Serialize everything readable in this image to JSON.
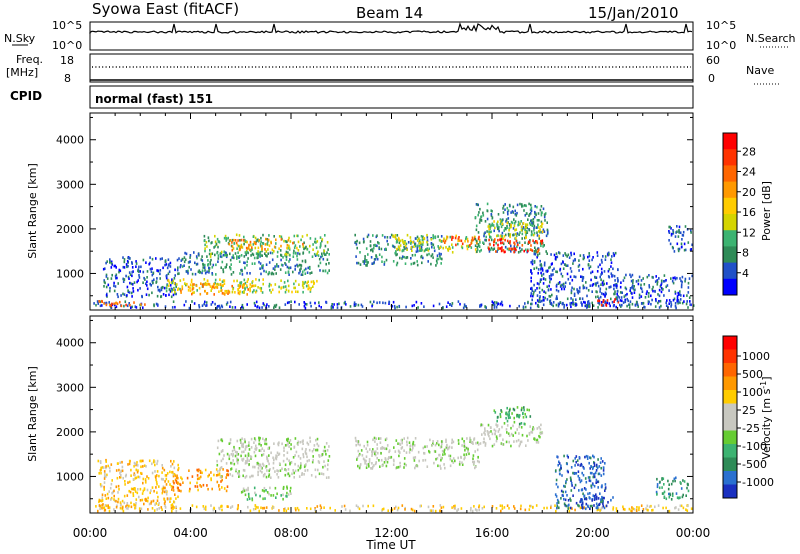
{
  "header": {
    "station": "Syowa East (fitACF)",
    "beam": "Beam 14",
    "date": "15/Jan/2010"
  },
  "strip_panels": {
    "nsky_label": "N.Sky",
    "nsky_ticks": [
      "10^5",
      "10^0"
    ],
    "nsearch_label": "N.Search",
    "nsearch_ticks": [
      "10^5",
      "10^0"
    ],
    "freq_label": "Freq.",
    "freq_unit": "[MHz]",
    "freq_ticks": [
      "18",
      "8"
    ],
    "nave_label": "Nave",
    "nave_ticks": [
      "60",
      "0"
    ],
    "cpid_label": "CPID",
    "cpid_value": "normal (fast) 151"
  },
  "chart_data": [
    {
      "type": "heatmap",
      "name": "power-panel",
      "ylabel": "Slant Range [km]",
      "xlabel": "",
      "xlim": [
        0,
        24
      ],
      "ylim": [
        180,
        4600
      ],
      "yticks": [
        "1000",
        "2000",
        "3000",
        "4000"
      ],
      "xticks": [
        "00:00",
        "04:00",
        "08:00",
        "12:00",
        "16:00",
        "20:00",
        "00:00"
      ],
      "colorbar": {
        "label": "Power [dB]",
        "ticks": [
          "4",
          "8",
          "12",
          "16",
          "20",
          "24",
          "28"
        ],
        "colors": [
          "#0000ff",
          "#2050c8",
          "#2e8b57",
          "#3cb371",
          "#d4d400",
          "#ffcc00",
          "#ff9900",
          "#ff6600",
          "#ff3300",
          "#ff0000"
        ]
      },
      "regions": [
        {
          "t0": 0.0,
          "t1": 24.0,
          "r0": 250,
          "r1": 400,
          "level": 1
        },
        {
          "t0": 0.3,
          "t1": 2.2,
          "r0": 300,
          "r1": 420,
          "level": 7
        },
        {
          "t0": 0.5,
          "t1": 3.5,
          "r0": 500,
          "r1": 1400,
          "level": 1
        },
        {
          "t0": 3.0,
          "t1": 9.0,
          "r0": 600,
          "r1": 900,
          "level": 4
        },
        {
          "t0": 3.5,
          "t1": 6.5,
          "r0": 550,
          "r1": 800,
          "level": 6
        },
        {
          "t0": 3.5,
          "t1": 9.5,
          "r0": 1000,
          "r1": 1500,
          "level": 2
        },
        {
          "t0": 4.5,
          "t1": 9.5,
          "r0": 1400,
          "r1": 1900,
          "level": 3
        },
        {
          "t0": 5.5,
          "t1": 8.5,
          "r0": 1550,
          "r1": 1800,
          "level": 6
        },
        {
          "t0": 10.5,
          "t1": 14.0,
          "r0": 1200,
          "r1": 1900,
          "level": 2
        },
        {
          "t0": 12.0,
          "t1": 15.5,
          "r0": 1500,
          "r1": 1900,
          "level": 4
        },
        {
          "t0": 14.0,
          "t1": 15.5,
          "r0": 1650,
          "r1": 1850,
          "level": 7
        },
        {
          "t0": 15.3,
          "t1": 18.2,
          "r0": 1500,
          "r1": 2600,
          "level": 2
        },
        {
          "t0": 15.8,
          "t1": 18.0,
          "r0": 1800,
          "r1": 2200,
          "level": 4
        },
        {
          "t0": 15.8,
          "t1": 18.0,
          "r0": 1500,
          "r1": 1800,
          "level": 8
        },
        {
          "t0": 17.5,
          "t1": 21.0,
          "r0": 300,
          "r1": 1500,
          "level": 1
        },
        {
          "t0": 20.0,
          "t1": 21.0,
          "r0": 300,
          "r1": 450,
          "level": 8
        },
        {
          "t0": 20.8,
          "t1": 24.0,
          "r0": 300,
          "r1": 1000,
          "level": 1
        },
        {
          "t0": 23.0,
          "t1": 24.0,
          "r0": 1500,
          "r1": 2100,
          "level": 1
        }
      ]
    },
    {
      "type": "heatmap",
      "name": "velocity-panel",
      "ylabel": "Slant Range [km]",
      "xlabel": "Time UT",
      "xlim": [
        0,
        24
      ],
      "ylim": [
        180,
        4600
      ],
      "yticks": [
        "1000",
        "2000",
        "3000",
        "4000"
      ],
      "xticks": [
        "00:00",
        "04:00",
        "08:00",
        "12:00",
        "16:00",
        "20:00",
        "00:00"
      ],
      "colorbar": {
        "label": "Velocity [m s^-1]",
        "ticks": [
          "1000",
          "500",
          "100",
          "25",
          "-25",
          "-100",
          "-500",
          "-1000"
        ],
        "colors": [
          "#1a30c0",
          "#2a70d0",
          "#2e8b57",
          "#3cb371",
          "#66cc33",
          "#c8c8c0",
          "#c8c8c0",
          "#ffcc00",
          "#ff9900",
          "#ff6600",
          "#ff3300",
          "#ff0000"
        ]
      },
      "regions": [
        {
          "t0": 0.0,
          "t1": 24.0,
          "r0": 250,
          "r1": 380,
          "level": 7
        },
        {
          "t0": 0.3,
          "t1": 3.5,
          "r0": 300,
          "r1": 1400,
          "level": 7
        },
        {
          "t0": 3.2,
          "t1": 5.5,
          "r0": 700,
          "r1": 1200,
          "level": 8
        },
        {
          "t0": 5.0,
          "t1": 9.5,
          "r0": 1000,
          "r1": 1900,
          "level": 5
        },
        {
          "t0": 6.0,
          "t1": 8.0,
          "r0": 500,
          "r1": 800,
          "level": 4
        },
        {
          "t0": 10.5,
          "t1": 15.5,
          "r0": 1200,
          "r1": 1900,
          "level": 5
        },
        {
          "t0": 15.5,
          "t1": 18.0,
          "r0": 1700,
          "r1": 2200,
          "level": 5
        },
        {
          "t0": 16.0,
          "t1": 17.5,
          "r0": 2200,
          "r1": 2600,
          "level": 3
        },
        {
          "t0": 18.5,
          "t1": 20.5,
          "r0": 300,
          "r1": 1500,
          "level": 1
        },
        {
          "t0": 19.5,
          "t1": 20.8,
          "r0": 300,
          "r1": 600,
          "level": 0
        },
        {
          "t0": 22.5,
          "t1": 23.8,
          "r0": 500,
          "r1": 1000,
          "level": 2
        }
      ]
    }
  ]
}
